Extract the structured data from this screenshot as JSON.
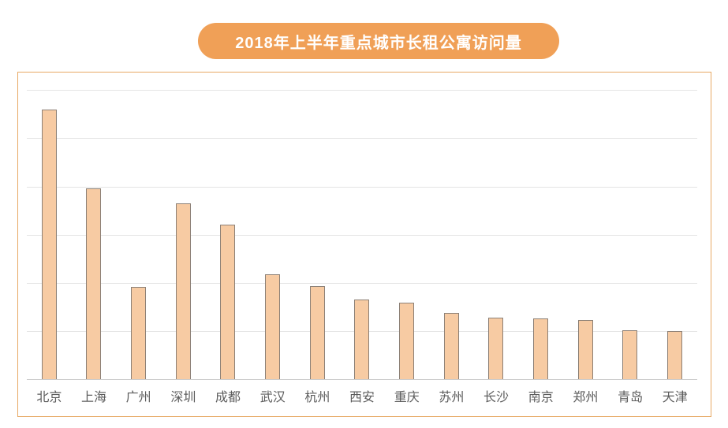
{
  "header": {
    "title": "2018年上半年重点城市长租公寓访问量"
  },
  "colors": {
    "title_badge_bg": "#F0A057",
    "title_text": "#FFFFFF",
    "panel_border": "#E7A965",
    "bar_fill": "#F7CBA3",
    "bar_border": "#8C8076",
    "gridline": "#E4E4E4",
    "axis_line": "#CCCCCC",
    "label_text": "#5C5C5C"
  },
  "chart_data": {
    "type": "bar",
    "title": "2018年上半年重点城市长租公寓访问量",
    "categories": [
      "北京",
      "上海",
      "广州",
      "深圳",
      "成都",
      "武汉",
      "杭州",
      "西安",
      "重庆",
      "苏州",
      "长沙",
      "南京",
      "郑州",
      "青岛",
      "天津"
    ],
    "values": [
      56,
      39.6,
      19.1,
      36.5,
      32.1,
      21.8,
      19.3,
      16.5,
      15.9,
      13.7,
      12.8,
      12.6,
      12.3,
      10.1,
      10
    ],
    "value_note": "No numeric axis labels are shown in the image; values are estimated in gridline units where one gridline interval = 10.",
    "xlabel": "",
    "ylabel": "",
    "ylim": [
      0,
      63.8
    ],
    "gridline_values": [
      10,
      20,
      30,
      40,
      50,
      60
    ],
    "grid": "horizontal",
    "legend": "none",
    "bar_color": "#F7CBA3",
    "bar_border_color": "#8C8076"
  }
}
